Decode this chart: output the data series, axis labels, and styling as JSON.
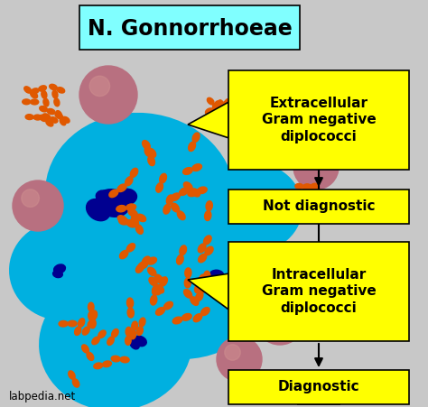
{
  "title": "N. Gonnorrhoeae",
  "background_color": "#c8c8c8",
  "title_box_color": "#80ffff",
  "yellow_box_color": "#ffff00",
  "cyan_cell_color": "#00b0e0",
  "dark_blue_color": "#000090",
  "rbc_color": "#b87080",
  "diplo_color": "#e05800",
  "labels": {
    "extracellular": "Extracellular\nGram negative\ndiplococci",
    "not_diagnostic": "Not diagnostic",
    "intracellular": "Intracellular\nGram negative\ndiplococci",
    "diagnostic": "Diagnostic",
    "watermark": "labpedia.net"
  },
  "figsize": [
    4.74,
    4.51
  ],
  "dpi": 100
}
